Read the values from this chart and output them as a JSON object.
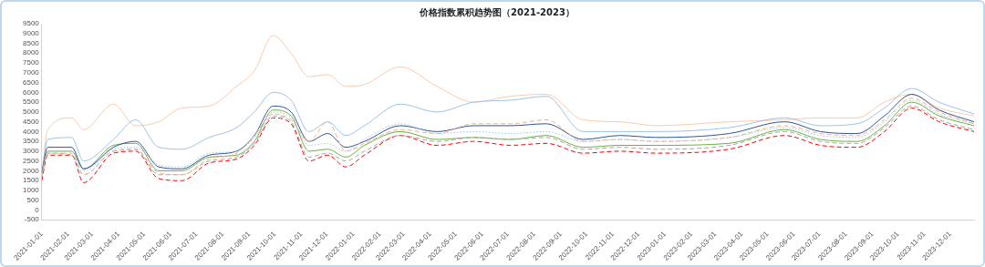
{
  "chart_data": {
    "type": "line",
    "title": "价格指数累积趋势图（2021-2023）",
    "x": [
      "2021-01-01",
      "2021-01-08",
      "2021-02-05",
      "2021-02-19",
      "2021-03-26",
      "2021-04-21",
      "2021-05-18",
      "2021-06-14",
      "2021-07-16",
      "2021-08-17",
      "2021-09-07",
      "2021-09-29",
      "2021-10-20",
      "2021-11-10",
      "2021-12-02",
      "2021-12-23",
      "2022-01-14",
      "2022-02-25",
      "2022-04-09",
      "2022-05-22",
      "2022-07-04",
      "2022-08-15",
      "2022-09-27",
      "2022-11-09",
      "2022-12-22",
      "2023-03-17",
      "2023-05-21",
      "2023-07-02",
      "2023-08-14",
      "2023-09-15",
      "2023-10-17",
      "2023-11-18",
      "2023-12-29"
    ],
    "series": [
      {
        "color": "#9dc3e6",
        "line_style": "dotted",
        "values": [
          1900,
          3000,
          3000,
          2000,
          3100,
          3200,
          2300,
          2200,
          2900,
          3000,
          3700,
          5000,
          4700,
          3300,
          3400,
          3000,
          3600,
          4400,
          3900,
          4000,
          3900,
          4000,
          3500,
          3600,
          3500,
          3700,
          4200,
          3800,
          3700,
          4500,
          5600,
          4900,
          4400
        ]
      },
      {
        "color": "#f4b183",
        "line_style": "dashed",
        "values": [
          1800,
          2900,
          2900,
          1800,
          3000,
          3100,
          1900,
          1800,
          2600,
          2900,
          3800,
          4900,
          4600,
          3500,
          4500,
          3000,
          3400,
          4100,
          3900,
          4400,
          4400,
          4600,
          3500,
          3600,
          3500,
          3700,
          4300,
          3900,
          3800,
          4600,
          5700,
          5000,
          4400
        ]
      },
      {
        "color": "#a6a6a6",
        "line_style": "dashed",
        "values": [
          1700,
          2900,
          2800,
          1800,
          3000,
          3100,
          1800,
          1800,
          2500,
          2700,
          3400,
          4800,
          4500,
          2700,
          2900,
          2500,
          3000,
          3800,
          3500,
          3700,
          3600,
          3700,
          3100,
          3200,
          3100,
          3300,
          4000,
          3500,
          3400,
          4200,
          5300,
          4600,
          4100
        ]
      },
      {
        "color": "#ff0000",
        "line_style": "dashed",
        "values": [
          1500,
          2800,
          2800,
          1400,
          2900,
          3000,
          1600,
          1500,
          2400,
          2600,
          3300,
          4700,
          4400,
          2500,
          2800,
          2200,
          2800,
          3800,
          3300,
          3500,
          3300,
          3400,
          2900,
          3000,
          2900,
          3100,
          3800,
          3300,
          3200,
          4000,
          5200,
          4500,
          4000
        ]
      },
      {
        "color": "#2f5597",
        "line_style": "solid",
        "values": [
          1900,
          3200,
          3200,
          2100,
          3200,
          3500,
          2200,
          2100,
          2800,
          3000,
          3800,
          5300,
          5000,
          3500,
          3900,
          3200,
          3500,
          4300,
          4000,
          4300,
          4300,
          4400,
          3600,
          3800,
          3700,
          3900,
          4500,
          4000,
          3900,
          4800,
          5900,
          5100,
          4500
        ]
      },
      {
        "color": "#70ad47",
        "line_style": "solid",
        "values": [
          1900,
          3000,
          3000,
          2100,
          3300,
          3400,
          2000,
          2000,
          2700,
          2800,
          3500,
          5100,
          4800,
          3000,
          3100,
          2700,
          3300,
          4000,
          3600,
          3700,
          3600,
          3800,
          3200,
          3300,
          3300,
          3400,
          4100,
          3600,
          3500,
          4300,
          5500,
          4800,
          4300
        ]
      },
      {
        "color": "#9dc3e6",
        "line_style": "solid",
        "values": [
          1900,
          3600,
          3700,
          2500,
          3600,
          4600,
          3200,
          3100,
          3700,
          4200,
          5000,
          6000,
          5600,
          4000,
          4500,
          3800,
          4300,
          5400,
          5000,
          5500,
          5600,
          5800,
          4000,
          4000,
          4000,
          4200,
          4700,
          4300,
          4400,
          5200,
          6200,
          5500,
          4900
        ]
      },
      {
        "color": "#f8cbad",
        "line_style": "solid",
        "values": [
          1800,
          4100,
          4700,
          4100,
          5400,
          4300,
          4500,
          5200,
          5300,
          6300,
          7100,
          8900,
          8000,
          6800,
          6900,
          6300,
          6400,
          7300,
          6300,
          5500,
          5800,
          5900,
          4600,
          4500,
          4300,
          4500,
          4600,
          4700,
          4700,
          5500,
          5900,
          5200,
          4800
        ]
      }
    ],
    "xlim": [
      "2021-01-01",
      "2023-12-29"
    ],
    "xticks": [
      "2021-01-01",
      "2021-02-01",
      "2021-03-01",
      "2021-04-01",
      "2021-05-01",
      "2021-06-01",
      "2021-07-01",
      "2021-08-01",
      "2021-09-01",
      "2021-10-01",
      "2021-11-01",
      "2021-12-01",
      "2022-01-01",
      "2022-02-01",
      "2022-03-01",
      "2022-04-01",
      "2022-05-01",
      "2022-06-01",
      "2022-07-01",
      "2022-08-01",
      "2022-09-01",
      "2022-10-01",
      "2022-11-01",
      "2022-12-01",
      "2023-01-01",
      "2023-02-01",
      "2023-03-01",
      "2023-04-01",
      "2023-05-01",
      "2023-06-01",
      "2023-07-01",
      "2023-08-01",
      "2023-09-01",
      "2023-10-01",
      "2023-11-01",
      "2023-12-01"
    ],
    "ylim": [
      -500,
      9500
    ],
    "yticks": [
      -500,
      0,
      500,
      1000,
      1500,
      2000,
      2500,
      3000,
      3500,
      4000,
      4500,
      5000,
      5500,
      6000,
      6500,
      7000,
      7500,
      8000,
      8500,
      9000,
      9500
    ],
    "marker": "none",
    "grid": false,
    "legend": false
  }
}
